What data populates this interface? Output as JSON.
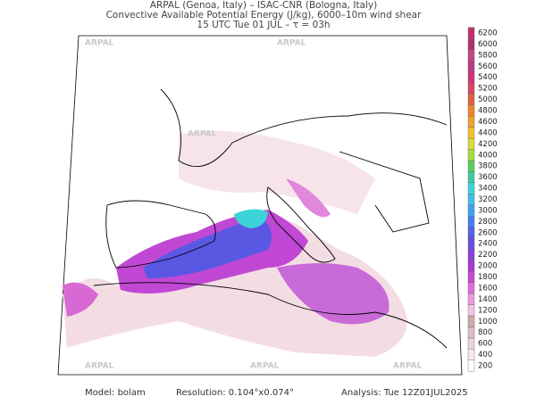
{
  "header": {
    "line1": "ARPAL (Genoa, Italy)  –  ISAC-CNR (Bologna, Italy)",
    "line2": "Convective Available Potential Energy (J/kg), 6000–10m wind shear",
    "line3": "15 UTC Tue 01 JUL  –  τ = 03h"
  },
  "watermark": "ARPAL",
  "colorbar": {
    "levels": [
      200,
      400,
      600,
      800,
      1000,
      1200,
      1400,
      1600,
      1800,
      2000,
      2200,
      2400,
      2600,
      2800,
      3000,
      3200,
      3400,
      3600,
      3800,
      4000,
      4200,
      4400,
      4600,
      4800,
      5000,
      5200,
      5400,
      5600,
      5800,
      6000,
      6200
    ],
    "colors": [
      "#ffffff",
      "#f6e9ec",
      "#eed3d8",
      "#e0bcc2",
      "#cfa9ae",
      "#f2c4e4",
      "#eb9ae2",
      "#dc6cdc",
      "#c848d4",
      "#a838d0",
      "#8840d8",
      "#6a4ce0",
      "#5462e6",
      "#4480ee",
      "#40a0ee",
      "#40bee8",
      "#3cd4d8",
      "#3ccca0",
      "#5ccc5c",
      "#a4dc40",
      "#dcdc3c",
      "#f0c030",
      "#f0a030",
      "#ee8230",
      "#e06040",
      "#dc4464",
      "#d03474",
      "#c03884",
      "#c44488",
      "#b0306c",
      "#c0306c"
    ]
  },
  "footer": {
    "model": "Model: bolam",
    "resolution": "Resolution: 0.104°x0.074°",
    "analysis": "Analysis: Tue 12Z01JUL2025"
  }
}
